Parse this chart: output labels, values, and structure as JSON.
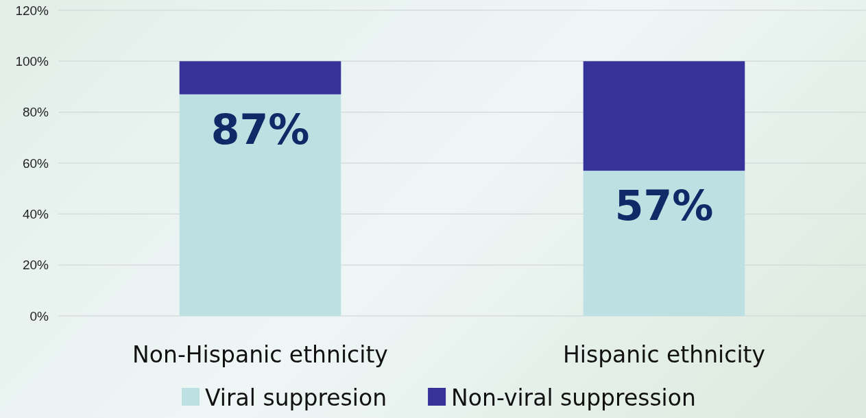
{
  "chart_data": {
    "type": "bar",
    "stacked": true,
    "categories": [
      "Non-Hispanic ethnicity",
      "Hispanic ethnicity"
    ],
    "series": [
      {
        "name": "Viral suppresion",
        "color": "#bde0e3",
        "values": [
          87,
          57
        ],
        "value_labels": [
          "87%",
          "57%"
        ]
      },
      {
        "name": "Non-viral suppression",
        "color": "#35329a",
        "values": [
          13,
          43
        ]
      }
    ],
    "ylim": [
      0,
      120
    ],
    "yticks": [
      {
        "value": 0,
        "label": "0%"
      },
      {
        "value": 20,
        "label": "20%"
      },
      {
        "value": 40,
        "label": "40%"
      },
      {
        "value": 60,
        "label": "60%"
      },
      {
        "value": 80,
        "label": "80%"
      },
      {
        "value": 100,
        "label": "100%"
      },
      {
        "value": 120,
        "label": "120%"
      }
    ],
    "grid": "y",
    "legend": "bottom"
  }
}
